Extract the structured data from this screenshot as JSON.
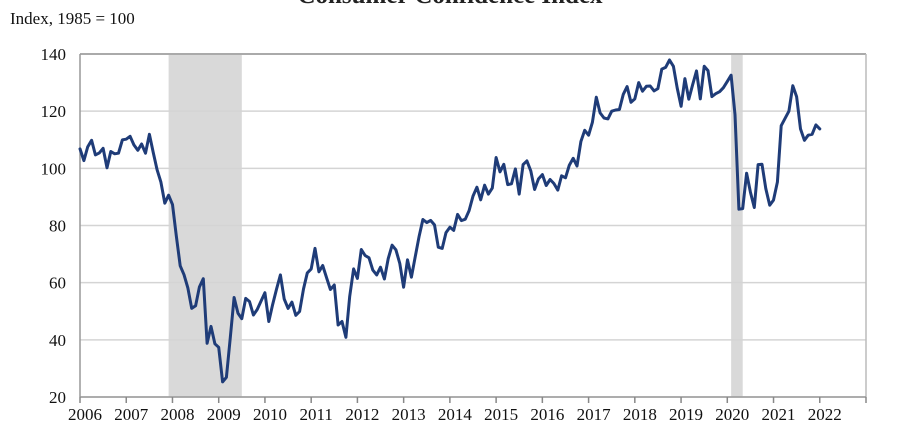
{
  "chart_data": {
    "type": "line",
    "title": "Consumer Confidence Index",
    "ylabel": "Index, 1985 = 100",
    "xlabel": "",
    "ylim": [
      20,
      140
    ],
    "yticks": [
      20,
      40,
      60,
      80,
      100,
      120,
      140
    ],
    "xlim": [
      2006,
      2023
    ],
    "xticks": [
      "2006",
      "2007",
      "2008",
      "2009",
      "2010",
      "2011",
      "2012",
      "2013",
      "2014",
      "2015",
      "2016",
      "2017",
      "2018",
      "2019",
      "2020",
      "2021",
      "2022"
    ],
    "grid": "horizontal",
    "frequency": "monthly",
    "line_color": "#1f3c78",
    "shading_color": "#d9d9d9",
    "recessions": [
      {
        "start": "2007-12",
        "end": "2009-06"
      },
      {
        "start": "2020-02",
        "end": "2020-04"
      }
    ],
    "values_by_year": {
      "2006": [
        106.8,
        102.7,
        107.5,
        109.8,
        104.7,
        105.4,
        107.0,
        100.2,
        105.9,
        105.1,
        105.3,
        110.0
      ],
      "2007": [
        110.2,
        111.2,
        108.2,
        106.3,
        108.5,
        105.3,
        111.9,
        105.6,
        99.5,
        95.2,
        87.8,
        90.6
      ],
      "2008": [
        87.3,
        76.4,
        65.9,
        62.8,
        58.1,
        51.0,
        51.9,
        58.5,
        61.4,
        38.8,
        44.7,
        38.6
      ],
      "2009": [
        37.4,
        25.3,
        26.9,
        40.8,
        54.8,
        49.3,
        47.4,
        54.5,
        53.4,
        48.7,
        50.6,
        53.6
      ],
      "2010": [
        56.5,
        46.4,
        52.3,
        57.7,
        62.7,
        54.3,
        51.0,
        53.2,
        48.6,
        49.9,
        57.8,
        63.4
      ],
      "2011": [
        64.8,
        72.0,
        63.8,
        66.0,
        61.7,
        57.6,
        59.2,
        45.2,
        46.4,
        40.9,
        55.2,
        64.8
      ],
      "2012": [
        61.5,
        71.6,
        69.5,
        68.7,
        64.4,
        62.7,
        65.4,
        61.3,
        68.4,
        73.1,
        71.5,
        66.7
      ],
      "2013": [
        58.4,
        68.0,
        61.9,
        69.0,
        76.2,
        82.1,
        81.0,
        81.8,
        80.2,
        72.4,
        72.0,
        77.5
      ],
      "2014": [
        79.4,
        78.3,
        83.9,
        81.7,
        82.2,
        85.2,
        90.3,
        93.4,
        89.0,
        94.1,
        91.0,
        93.1
      ],
      "2015": [
        103.8,
        98.8,
        101.4,
        94.3,
        94.6,
        99.8,
        91.0,
        101.3,
        102.6,
        99.1,
        92.6,
        96.3
      ],
      "2016": [
        97.8,
        94.0,
        96.1,
        94.7,
        92.4,
        97.4,
        96.7,
        101.1,
        103.5,
        100.8,
        109.4,
        113.3
      ],
      "2017": [
        111.6,
        116.1,
        124.9,
        119.4,
        117.6,
        117.3,
        120.0,
        120.4,
        120.6,
        125.9,
        128.6,
        123.1
      ],
      "2018": [
        124.3,
        130.0,
        127.0,
        128.7,
        128.8,
        127.1,
        127.9,
        134.7,
        135.3,
        137.9,
        135.7,
        128.1
      ],
      "2019": [
        121.7,
        131.4,
        124.2,
        129.2,
        134.1,
        124.3,
        135.7,
        134.2,
        125.1,
        126.1,
        126.8,
        128.2
      ],
      "2020": [
        130.4,
        132.6,
        118.8,
        85.7,
        85.9,
        98.3,
        91.7,
        86.3,
        101.3,
        101.4,
        92.9,
        87.1
      ],
      "2021": [
        88.9,
        95.2,
        114.9,
        117.5,
        120.0,
        128.9,
        125.1,
        113.8,
        109.8,
        111.6,
        111.9,
        115.2
      ],
      "2022": [
        113.8
      ]
    }
  }
}
